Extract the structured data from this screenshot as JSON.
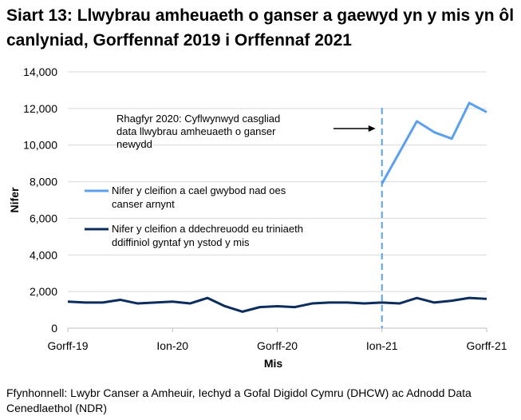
{
  "title": "Siart 13: Llwybrau amheuaeth o ganser a gaewyd yn y mis yn ôl canlyniad, Gorffennaf 2019 i Orffennaf 2021",
  "source": "Ffynhonnell: Lwybr Canser a Amheuir, Iechyd a Gofal Digidol Cymru (DHCW) ac Adnodd Data Cenedlaethol (NDR)",
  "colors": {
    "series1": "#5b9ff0",
    "series2": "#0b2d5e",
    "grid": "#d9d9d9",
    "axis": "#bfbfbf"
  },
  "chart_data": {
    "type": "line",
    "title": "Siart 13: Llwybrau amheuaeth o ganser a gaewyd yn y mis yn ôl canlyniad, Gorffennaf 2019 i Orffennaf 2021",
    "xlabel": "Mis",
    "ylabel": "Nifer",
    "ylim": [
      0,
      14000
    ],
    "yticks": [
      0,
      2000,
      4000,
      6000,
      8000,
      10000,
      12000,
      14000
    ],
    "ytick_labels": [
      "0",
      "2,000",
      "4,000",
      "6,000",
      "8,000",
      "10,000",
      "12,000",
      "14,000"
    ],
    "x_count": 25,
    "xticks": [
      {
        "index": 0,
        "label": "Gorff-19"
      },
      {
        "index": 6,
        "label": "Ion-20"
      },
      {
        "index": 12,
        "label": "Gorff-20"
      },
      {
        "index": 18,
        "label": "Ion-21"
      },
      {
        "index": 24,
        "label": "Gorff-21"
      }
    ],
    "grid": true,
    "series": [
      {
        "name": "Nifer y cleifion a cael gwybod nad oes canser arnynt",
        "start_index": 18,
        "values": [
          7900,
          9600,
          11300,
          10700,
          10350,
          12300,
          11800
        ]
      },
      {
        "name": "Nifer y cleifion a ddechreuodd eu triniaeth ddiffiniol gyntaf yn ystod y mis",
        "start_index": 0,
        "values": [
          1450,
          1400,
          1400,
          1550,
          1350,
          1400,
          1450,
          1350,
          1650,
          1200,
          900,
          1150,
          1200,
          1150,
          1350,
          1400,
          1400,
          1350,
          1400,
          1350,
          1650,
          1400,
          1500,
          1650,
          1600
        ]
      }
    ],
    "vline": {
      "index": 18,
      "style": "dashed"
    },
    "annotation": "Rhagfyr 2020: Cyflwynwyd casgliad data llwybrau amheuaeth o ganser newydd",
    "legend_position": "middle-left"
  }
}
